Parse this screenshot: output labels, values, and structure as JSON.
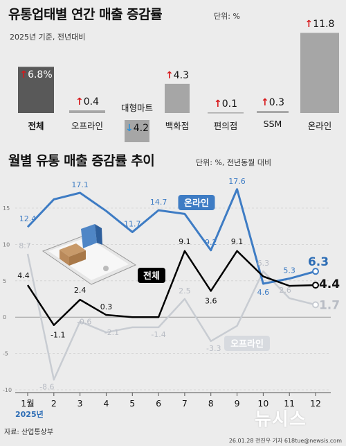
{
  "top": {
    "title": "유통업태별 연간 매출 증감률",
    "unit": "단위: %",
    "subtitle": "2025년 기준, 전년대비"
  },
  "bottom": {
    "title": "월별 유통 매출 증감률 추이",
    "unit": "단위: %, 전년동월 대비",
    "year_label": "2025년"
  },
  "footer": {
    "source": "자료: 산업통상부",
    "credit": "26.01.28 전진우 기자 618tue@newsis.com",
    "logo": "뉴시스"
  },
  "colors": {
    "total_bar": "#595959",
    "gray_bar": "#a6a6a6",
    "online_line": "#3e7cc4",
    "total_line": "#000000",
    "offline_line": "#c8ccd2",
    "up_arrow": "#d7191c",
    "down_arrow": "#2c8fd6"
  },
  "icons": {
    "up": "red-up-arrow-icon",
    "down": "blue-down-arrow-icon",
    "illustration": "smartphone-shopping-illustration"
  },
  "chart_data": [
    {
      "type": "bar",
      "title": "유통업태별 연간 매출 증감률",
      "subtitle": "2025년 기준, 전년대비",
      "unit": "단위: %",
      "categories": [
        "전체",
        "오프라인",
        "대형마트",
        "백화점",
        "편의점",
        "SSM",
        "온라인"
      ],
      "values": [
        6.8,
        0.4,
        -4.2,
        4.3,
        0.1,
        0.3,
        11.8
      ],
      "labels": [
        "6.8%",
        "0.4",
        "4.2",
        "4.3",
        "0.1",
        "0.3",
        "11.8"
      ]
    },
    {
      "type": "line",
      "title": "월별 유통 매출 증감률 추이",
      "unit": "단위: %, 전년동월 대비",
      "x": [
        "1월",
        "2",
        "3",
        "4",
        "5",
        "6",
        "7",
        "8",
        "9",
        "10",
        "11",
        "12"
      ],
      "ylim": [
        -10,
        15
      ],
      "yticks": [
        "15",
        "10",
        "5",
        "0",
        "-5",
        "-10"
      ],
      "grid": true,
      "series": [
        {
          "name": "온라인",
          "values": [
            12.4,
            16.2,
            17.1,
            14.6,
            11.7,
            14.7,
            14.2,
            9.2,
            17.6,
            4.6,
            5.3,
            6.3
          ],
          "labels": [
            "12.4",
            "",
            "17.1",
            "",
            "11.7",
            "14.7",
            "",
            "9.2",
            "17.6",
            "4.6",
            "5.3",
            "6.3"
          ]
        },
        {
          "name": "전체",
          "values": [
            4.4,
            -1.1,
            2.4,
            0.3,
            0.0,
            0.0,
            9.1,
            3.6,
            9.1,
            5.6,
            4.3,
            4.4
          ],
          "labels": [
            "4.4",
            "-1.1",
            "2.4",
            "0.3",
            "",
            "",
            "9.1",
            "3.6",
            "9.1",
            "",
            "",
            "4.4"
          ]
        },
        {
          "name": "오프라인",
          "values": [
            8.7,
            -8.6,
            -0.6,
            -2.1,
            -1.4,
            -1.4,
            2.5,
            -3.3,
            -1.2,
            6.3,
            2.6,
            1.7
          ],
          "labels": [
            "8.7",
            "-8.6",
            "-0.6",
            "-2.1",
            "",
            "-1.4",
            "2.5",
            "-3.3",
            "",
            "6.3",
            "2.6",
            "1.7"
          ]
        }
      ]
    }
  ]
}
